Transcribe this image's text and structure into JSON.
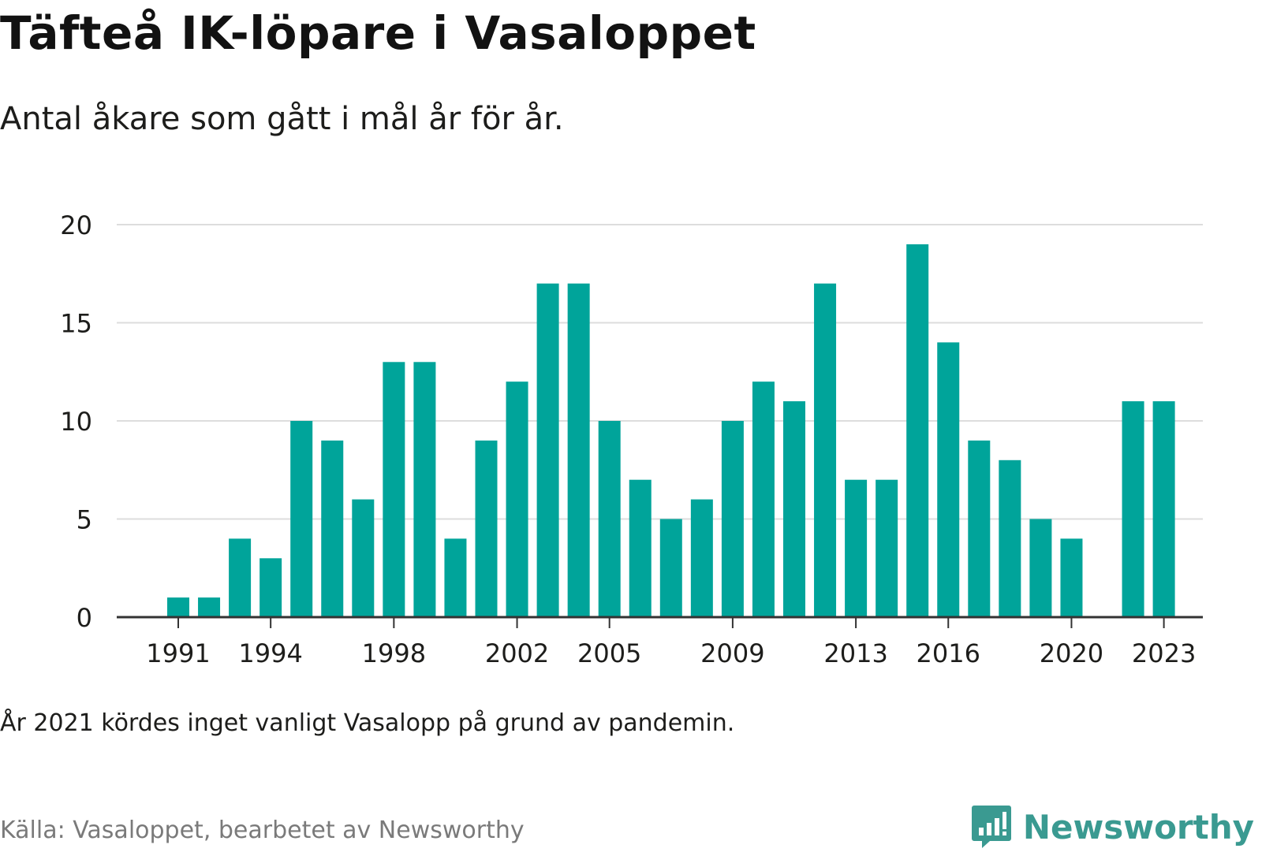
{
  "title": "Täfteå IK-löpare i Vasaloppet",
  "subtitle": "Antal åkare som gått i mål år för år.",
  "note": "År 2021 kördes inget vanligt Vasalopp på grund av pandemin.",
  "source": "Källa: Vasaloppet, bearbetet av Newsworthy",
  "logo": {
    "text": "Newsworthy",
    "icon": "newsworthy-chat-bars-icon"
  },
  "colors": {
    "bar": "#00a49a",
    "grid": "#dddddd",
    "axis": "#333333",
    "logo": "#3a9a91"
  },
  "chart_data": {
    "type": "bar",
    "title": "",
    "xlabel": "",
    "ylabel": "",
    "ylim": [
      0,
      20
    ],
    "yticks": [
      0,
      5,
      10,
      15,
      20
    ],
    "grid": true,
    "categories": [
      1991,
      1992,
      1993,
      1994,
      1995,
      1996,
      1997,
      1998,
      1999,
      2000,
      2001,
      2002,
      2003,
      2004,
      2005,
      2006,
      2007,
      2008,
      2009,
      2010,
      2011,
      2012,
      2013,
      2014,
      2015,
      2016,
      2017,
      2018,
      2019,
      2020,
      2021,
      2022,
      2023
    ],
    "values": [
      1,
      1,
      4,
      3,
      10,
      9,
      6,
      13,
      13,
      4,
      9,
      12,
      17,
      17,
      10,
      7,
      5,
      6,
      10,
      12,
      11,
      17,
      7,
      7,
      19,
      14,
      9,
      8,
      5,
      4,
      null,
      11,
      11
    ],
    "xtick_labels": [
      "1991",
      "1994",
      "1998",
      "2002",
      "2005",
      "2009",
      "2013",
      "2016",
      "2020",
      "2023"
    ]
  }
}
